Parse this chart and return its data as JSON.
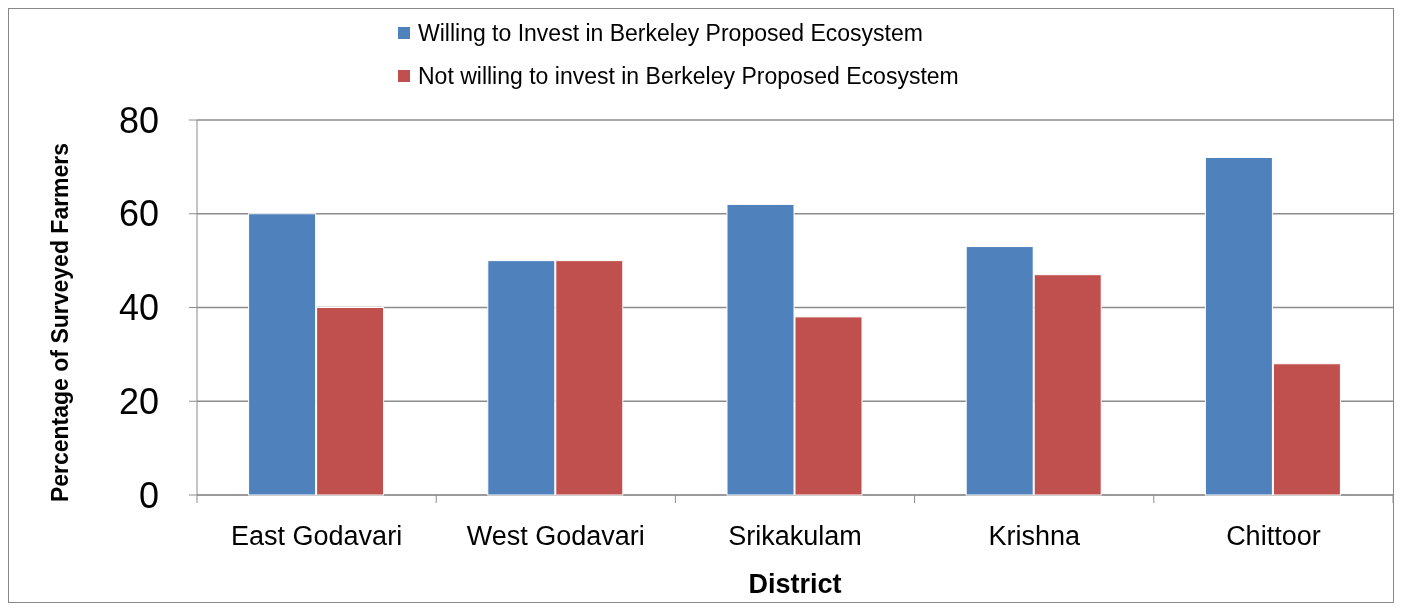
{
  "chart_data": {
    "type": "bar",
    "xlabel": "District",
    "ylabel": "Percentage of Surveyed Farmers",
    "categories": [
      "East Godavari",
      "West Godavari",
      "Srikakulam",
      "Krishna",
      "Chittoor"
    ],
    "series": [
      {
        "name": "Willing to Invest in Berkeley Proposed Ecosystem",
        "color": "#4f81bd",
        "values": [
          60,
          50,
          62,
          53,
          72
        ]
      },
      {
        "name": "Not willing to invest in Berkeley Proposed Ecosystem",
        "color": "#c0504d",
        "values": [
          40,
          50,
          38,
          47,
          28
        ]
      }
    ],
    "ylim": [
      0,
      80
    ],
    "yticks": [
      0,
      20,
      40,
      60,
      80
    ],
    "grid": "y",
    "legend": "top"
  }
}
